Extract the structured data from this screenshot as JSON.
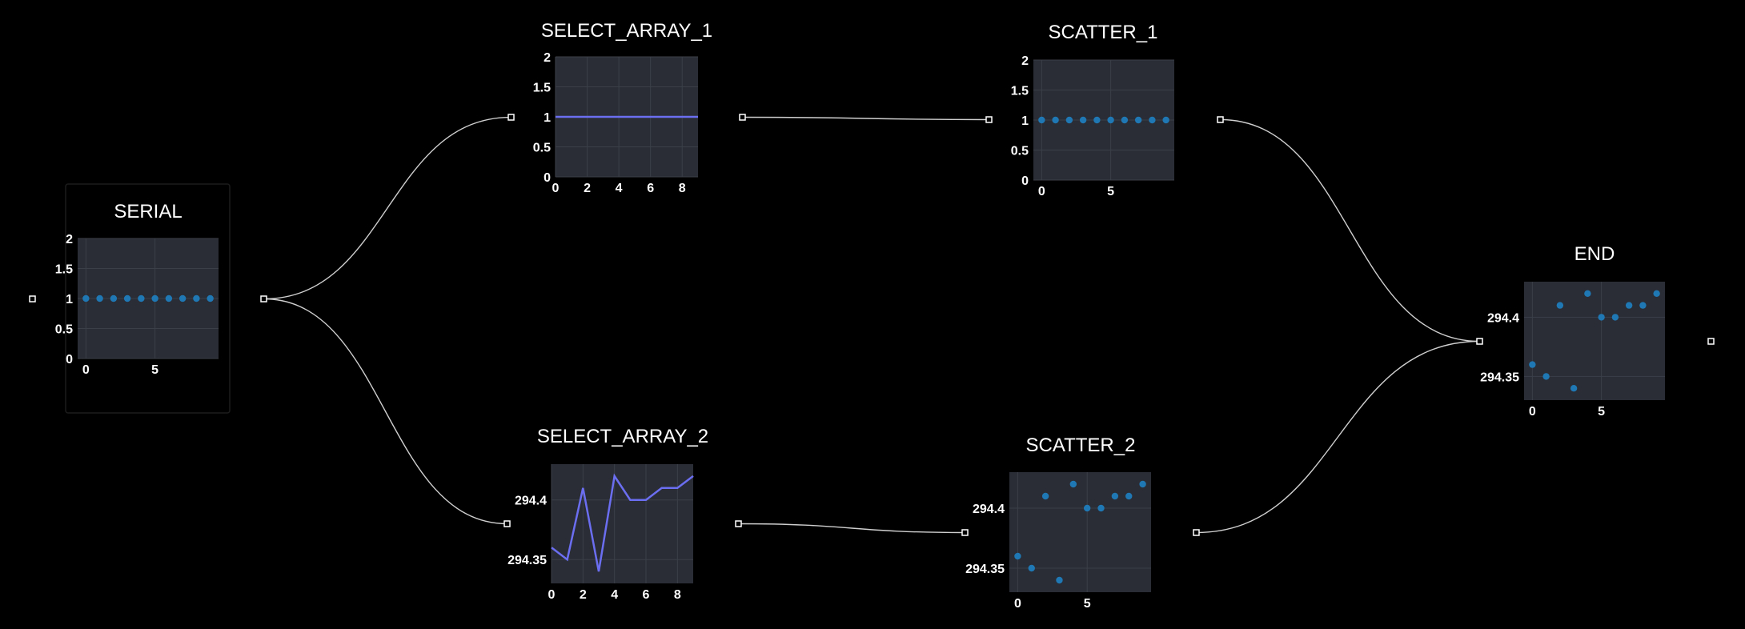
{
  "colors": {
    "background": "#000000",
    "plot_bg": "#2a2d35",
    "grid": "#3b3f48",
    "line": "#6b6ef0",
    "dot": "#1f77b4",
    "edge": "#cfcfcf",
    "text": "#ffffff"
  },
  "nodes": {
    "serial": {
      "title": "SERIAL",
      "chart_type": "scatter",
      "x": [
        0,
        1,
        2,
        3,
        4,
        5,
        6,
        7,
        8,
        9
      ],
      "y": [
        1,
        1,
        1,
        1,
        1,
        1,
        1,
        1,
        1,
        1
      ],
      "xlim": [
        -0.6,
        9.6
      ],
      "ylim": [
        0,
        2
      ],
      "xticks": [
        0,
        5
      ],
      "xtick_labels": [
        "0",
        "5"
      ],
      "yticks": [
        0,
        0.5,
        1,
        1.5,
        2
      ],
      "ytick_labels": [
        "0",
        "0.5",
        "1",
        "1.5",
        "2"
      ]
    },
    "select_array_1": {
      "title": "SELECT_ARRAY_1",
      "chart_type": "line",
      "x": [
        0,
        1,
        2,
        3,
        4,
        5,
        6,
        7,
        8,
        9
      ],
      "y": [
        1,
        1,
        1,
        1,
        1,
        1,
        1,
        1,
        1,
        1
      ],
      "xlim": [
        0,
        9
      ],
      "ylim": [
        0,
        2
      ],
      "xticks": [
        0,
        2,
        4,
        6,
        8
      ],
      "xtick_labels": [
        "0",
        "2",
        "4",
        "6",
        "8"
      ],
      "yticks": [
        0,
        0.5,
        1,
        1.5,
        2
      ],
      "ytick_labels": [
        "0",
        "0.5",
        "1",
        "1.5",
        "2"
      ]
    },
    "scatter_1": {
      "title": "SCATTER_1",
      "chart_type": "scatter",
      "x": [
        0,
        1,
        2,
        3,
        4,
        5,
        6,
        7,
        8,
        9
      ],
      "y": [
        1,
        1,
        1,
        1,
        1,
        1,
        1,
        1,
        1,
        1
      ],
      "xlim": [
        -0.6,
        9.6
      ],
      "ylim": [
        0,
        2
      ],
      "xticks": [
        0,
        5
      ],
      "xtick_labels": [
        "0",
        "5"
      ],
      "yticks": [
        0,
        0.5,
        1,
        1.5,
        2
      ],
      "ytick_labels": [
        "0",
        "0.5",
        "1",
        "1.5",
        "2"
      ]
    },
    "select_array_2": {
      "title": "SELECT_ARRAY_2",
      "chart_type": "line",
      "x": [
        0,
        1,
        2,
        3,
        4,
        5,
        6,
        7,
        8,
        9
      ],
      "y": [
        294.36,
        294.35,
        294.41,
        294.34,
        294.42,
        294.4,
        294.4,
        294.41,
        294.41,
        294.42
      ],
      "xlim": [
        0,
        9
      ],
      "ylim": [
        294.33,
        294.43
      ],
      "xticks": [
        0,
        2,
        4,
        6,
        8
      ],
      "xtick_labels": [
        "0",
        "2",
        "4",
        "6",
        "8"
      ],
      "yticks": [
        294.35,
        294.4
      ],
      "ytick_labels": [
        "294.35",
        "294.4"
      ]
    },
    "scatter_2": {
      "title": "SCATTER_2",
      "chart_type": "scatter",
      "x": [
        0,
        1,
        2,
        3,
        4,
        5,
        6,
        7,
        8,
        9
      ],
      "y": [
        294.36,
        294.35,
        294.41,
        294.34,
        294.42,
        294.4,
        294.4,
        294.41,
        294.41,
        294.42
      ],
      "xlim": [
        -0.6,
        9.6
      ],
      "ylim": [
        294.33,
        294.43
      ],
      "xticks": [
        0,
        5
      ],
      "xtick_labels": [
        "0",
        "5"
      ],
      "yticks": [
        294.35,
        294.4
      ],
      "ytick_labels": [
        "294.35",
        "294.4"
      ]
    },
    "end": {
      "title": "END",
      "chart_type": "scatter",
      "x": [
        0,
        1,
        2,
        3,
        4,
        5,
        6,
        7,
        8,
        9
      ],
      "y": [
        294.36,
        294.35,
        294.41,
        294.34,
        294.42,
        294.4,
        294.4,
        294.41,
        294.41,
        294.42
      ],
      "xlim": [
        -0.6,
        9.6
      ],
      "ylim": [
        294.33,
        294.43
      ],
      "xticks": [
        0,
        5
      ],
      "xtick_labels": [
        "0",
        "5"
      ],
      "yticks": [
        294.35,
        294.4
      ],
      "ytick_labels": [
        "294.35",
        "294.4"
      ]
    }
  },
  "edges": [
    {
      "from": "serial",
      "to": "select_array_1"
    },
    {
      "from": "serial",
      "to": "select_array_2"
    },
    {
      "from": "select_array_1",
      "to": "scatter_1"
    },
    {
      "from": "select_array_2",
      "to": "scatter_2"
    },
    {
      "from": "scatter_1",
      "to": "end"
    },
    {
      "from": "scatter_2",
      "to": "end"
    }
  ]
}
